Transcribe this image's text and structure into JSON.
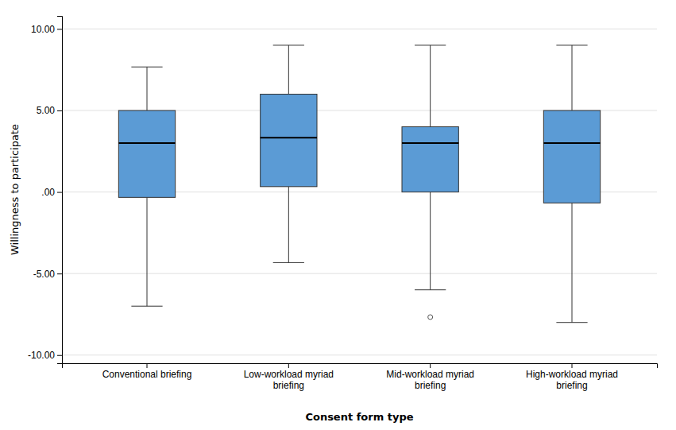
{
  "chart_data": {
    "type": "box",
    "categories": [
      "Conventional briefing",
      "Low-workload myriad\nbriefing",
      "Mid-workload myriad\nbriefing",
      "High-workload myriad\nbriefing"
    ],
    "boxes": [
      {
        "q1": -0.33,
        "median": 3.0,
        "q3": 5.0,
        "whisker_low": -7.0,
        "whisker_high": 7.67,
        "outliers": []
      },
      {
        "q1": 0.33,
        "median": 3.33,
        "q3": 6.0,
        "whisker_low": -4.33,
        "whisker_high": 9.0,
        "outliers": []
      },
      {
        "q1": 0.0,
        "median": 3.0,
        "q3": 4.0,
        "whisker_low": -6.0,
        "whisker_high": 9.0,
        "outliers": [
          -7.67
        ]
      },
      {
        "q1": -0.67,
        "median": 3.0,
        "q3": 5.0,
        "whisker_low": -8.0,
        "whisker_high": 9.0,
        "outliers": []
      }
    ],
    "color": "#5B9BD5",
    "ylabel": "Willingness to participate",
    "xlabel": "Consent form type",
    "ylim": [
      -10.5,
      10.8
    ],
    "yticks": [
      {
        "value": -10.0,
        "label": "-10.00"
      },
      {
        "value": -5.0,
        "label": "-5.00"
      },
      {
        "value": 0.0,
        "label": ".00"
      },
      {
        "value": 5.0,
        "label": "5.00"
      },
      {
        "value": 10.0,
        "label": "10.00"
      }
    ],
    "grid": true
  }
}
